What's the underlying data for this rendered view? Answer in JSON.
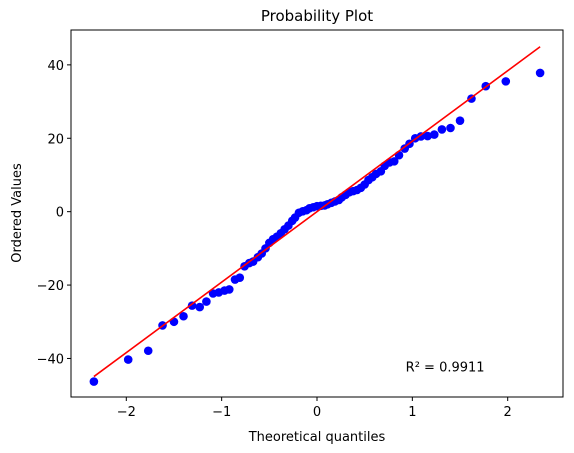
{
  "chart_data": {
    "type": "scatter",
    "title": "Probability Plot",
    "xlabel": "Theoretical quantiles",
    "ylabel": "Ordered Values",
    "xlim": [
      -2.58,
      2.58
    ],
    "ylim": [
      -50.5,
      49.5
    ],
    "xticks": [
      -2,
      -1,
      0,
      1,
      2
    ],
    "yticks": [
      -40,
      -20,
      0,
      20,
      40
    ],
    "xtick_labels": [
      "−2",
      "−1",
      "0",
      "1",
      "2"
    ],
    "ytick_labels": [
      "−40",
      "−20",
      "0",
      "20",
      "40"
    ],
    "grid": false,
    "annotation": "R² = 0.9911",
    "annotation_pos": [
      0.93,
      -43.5
    ],
    "fit_line": {
      "slope": 19.2,
      "intercept": 0.0,
      "x_start": -2.34,
      "x_end": 2.34,
      "color": "#ff0000"
    },
    "points_color": "#0000ff",
    "points": [
      [
        -2.34,
        -46.3
      ],
      [
        -1.98,
        -40.3
      ],
      [
        -1.77,
        -37.9
      ],
      [
        -1.62,
        -31.0
      ],
      [
        -1.5,
        -30.0
      ],
      [
        -1.4,
        -28.5
      ],
      [
        -1.31,
        -25.6
      ],
      [
        -1.23,
        -26.0
      ],
      [
        -1.16,
        -24.5
      ],
      [
        -1.09,
        -22.3
      ],
      [
        -1.03,
        -22.0
      ],
      [
        -0.97,
        -21.5
      ],
      [
        -0.92,
        -21.2
      ],
      [
        -0.86,
        -18.5
      ],
      [
        -0.81,
        -18.0
      ],
      [
        -0.76,
        -14.9
      ],
      [
        -0.71,
        -14.0
      ],
      [
        -0.67,
        -13.6
      ],
      [
        -0.62,
        -12.4
      ],
      [
        -0.58,
        -11.4
      ],
      [
        -0.54,
        -10.0
      ],
      [
        -0.5,
        -8.5
      ],
      [
        -0.46,
        -7.5
      ],
      [
        -0.42,
        -6.8
      ],
      [
        -0.38,
        -5.9
      ],
      [
        -0.34,
        -4.8
      ],
      [
        -0.3,
        -3.8
      ],
      [
        -0.26,
        -2.5
      ],
      [
        -0.23,
        -1.6
      ],
      [
        -0.19,
        -0.3
      ],
      [
        -0.15,
        0.1
      ],
      [
        -0.11,
        0.4
      ],
      [
        -0.08,
        0.9
      ],
      [
        -0.04,
        1.2
      ],
      [
        0.0,
        1.5
      ],
      [
        0.04,
        1.6
      ],
      [
        0.08,
        1.7
      ],
      [
        0.11,
        2.0
      ],
      [
        0.15,
        2.4
      ],
      [
        0.19,
        2.8
      ],
      [
        0.23,
        3.2
      ],
      [
        0.26,
        3.9
      ],
      [
        0.3,
        4.6
      ],
      [
        0.34,
        5.3
      ],
      [
        0.38,
        5.6
      ],
      [
        0.42,
        5.9
      ],
      [
        0.46,
        6.5
      ],
      [
        0.5,
        7.4
      ],
      [
        0.54,
        8.6
      ],
      [
        0.58,
        9.4
      ],
      [
        0.62,
        10.3
      ],
      [
        0.67,
        11.0
      ],
      [
        0.71,
        12.5
      ],
      [
        0.76,
        13.4
      ],
      [
        0.81,
        13.7
      ],
      [
        0.86,
        15.4
      ],
      [
        0.92,
        17.2
      ],
      [
        0.97,
        18.5
      ],
      [
        1.03,
        20.0
      ],
      [
        1.09,
        20.5
      ],
      [
        1.16,
        20.6
      ],
      [
        1.23,
        21.0
      ],
      [
        1.31,
        22.4
      ],
      [
        1.4,
        22.8
      ],
      [
        1.5,
        24.8
      ],
      [
        1.62,
        30.8
      ],
      [
        1.77,
        34.2
      ],
      [
        1.98,
        35.5
      ],
      [
        2.34,
        37.8
      ]
    ]
  }
}
